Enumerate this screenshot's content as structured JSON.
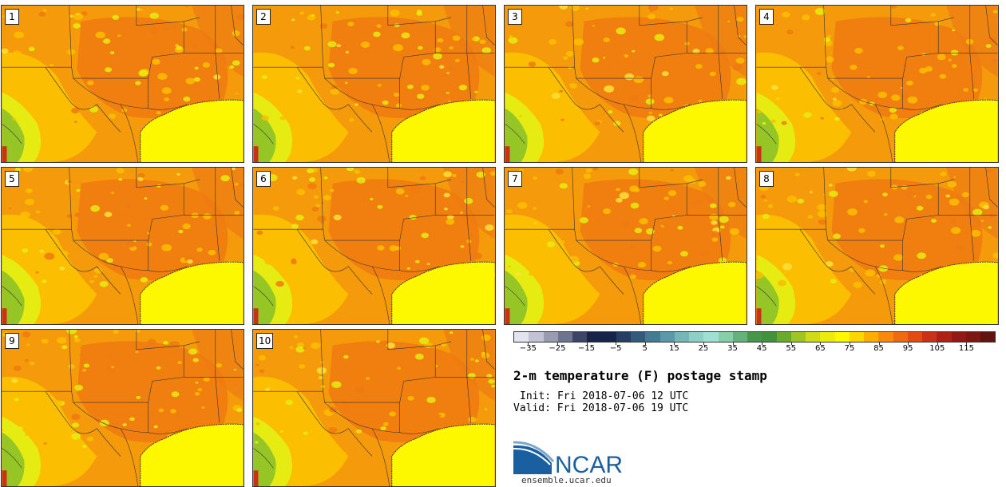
{
  "panels": [
    {
      "label": "1"
    },
    {
      "label": "2"
    },
    {
      "label": "3"
    },
    {
      "label": "4"
    },
    {
      "label": "5"
    },
    {
      "label": "6"
    },
    {
      "label": "7"
    },
    {
      "label": "8"
    },
    {
      "label": "9"
    },
    {
      "label": "10"
    }
  ],
  "colorbar": {
    "colors": [
      "#e4e4ee",
      "#c2c2d4",
      "#9a9ab0",
      "#6e7590",
      "#3c4565",
      "#162448",
      "#15244a",
      "#263e63",
      "#335a7c",
      "#437b93",
      "#5b98a8",
      "#75b7b7",
      "#8ecfc6",
      "#9ee0d2",
      "#86cfa8",
      "#63b37b",
      "#47974a",
      "#41923a",
      "#6aaa2d",
      "#9ec522",
      "#cfdb16",
      "#ecec0c",
      "#fdf800",
      "#fdd500",
      "#fdae00",
      "#f98a0c",
      "#ef6a10",
      "#e34b12",
      "#c93214",
      "#ae2114",
      "#941814",
      "#7e1614",
      "#63130f"
    ],
    "ticks": [
      "−35",
      "−25",
      "−15",
      "−5",
      "5",
      "15",
      "25",
      "35",
      "45",
      "55",
      "65",
      "75",
      "85",
      "95",
      "105",
      "115"
    ],
    "tick_min": -35,
    "tick_max": 115,
    "value_min": -40,
    "value_max": 125
  },
  "title": "2-m temperature (F) postage stamp",
  "init_time": "Init: Fri 2018-07-06 12 UTC",
  "valid_time": "Valid: Fri 2018-07-06 19 UTC",
  "logo": {
    "text": "NCAR",
    "url": "ensemble.ucar.edu",
    "color": "#1a5fa0"
  },
  "map_colors": {
    "land_hot": "#f59a0a",
    "land_hotter": "#ee7a12",
    "land_mild": "#fcbe00",
    "cool": "#e6ec12",
    "green": "#86c02a",
    "gulf": "#fdf800"
  }
}
